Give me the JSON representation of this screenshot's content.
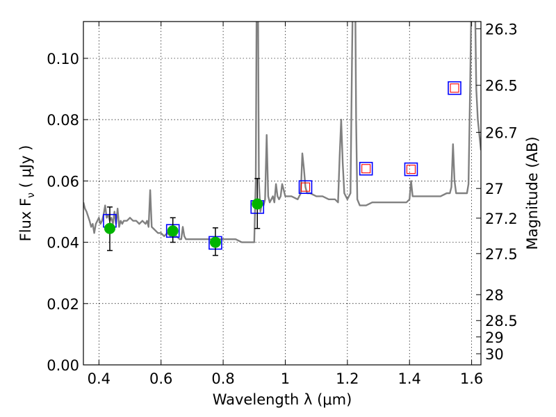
{
  "chart_data": {
    "type": "scatter",
    "xlabel": "Wavelength  λ (μm)",
    "ylabel": "Flux  F",
    "ylabel_sub": "ν",
    "ylabel_unit": " ( μJy )",
    "y2label": "Magnitude (AB)",
    "xlim": [
      0.35,
      1.63
    ],
    "ylim": [
      0.0,
      0.112
    ],
    "grid": true,
    "x_ticks": [
      0.4,
      0.6,
      0.8,
      1.0,
      1.2,
      1.4,
      1.6
    ],
    "x_tick_labels": [
      "0.4",
      "0.6",
      "0.8",
      "1",
      "1.2",
      "1.4",
      "1.6"
    ],
    "y_ticks": [
      0.0,
      0.02,
      0.04,
      0.06,
      0.08,
      0.1
    ],
    "y_tick_labels": [
      "0.00",
      "0.02",
      "0.04",
      "0.06",
      "0.08",
      "0.10"
    ],
    "y2_ticks": [
      {
        "mag": 26.3,
        "label": "26.3"
      },
      {
        "mag": 26.5,
        "label": "26.5"
      },
      {
        "mag": 26.7,
        "label": "26.7"
      },
      {
        "mag": 27.0,
        "label": "27"
      },
      {
        "mag": 27.2,
        "label": "27.2"
      },
      {
        "mag": 27.5,
        "label": "27.5"
      },
      {
        "mag": 28.0,
        "label": "28"
      },
      {
        "mag": 28.5,
        "label": "28.5"
      },
      {
        "mag": 29.0,
        "label": "29"
      },
      {
        "mag": 30.0,
        "label": "30"
      }
    ],
    "series": [
      {
        "kind": "line",
        "color": "#808080",
        "x": [
          0.35,
          0.355,
          0.36,
          0.37,
          0.375,
          0.38,
          0.385,
          0.39,
          0.4,
          0.405,
          0.41,
          0.415,
          0.42,
          0.425,
          0.43,
          0.435,
          0.44,
          0.445,
          0.45,
          0.455,
          0.46,
          0.465,
          0.47,
          0.475,
          0.48,
          0.49,
          0.5,
          0.51,
          0.52,
          0.53,
          0.54,
          0.55,
          0.555,
          0.56,
          0.565,
          0.57,
          0.58,
          0.59,
          0.6,
          0.61,
          0.62,
          0.63,
          0.64,
          0.65,
          0.66,
          0.665,
          0.67,
          0.675,
          0.68,
          0.7,
          0.72,
          0.74,
          0.76,
          0.78,
          0.8,
          0.82,
          0.84,
          0.86,
          0.88,
          0.89,
          0.895,
          0.9,
          0.905,
          0.908,
          0.91,
          0.912,
          0.915,
          0.92,
          0.925,
          0.93,
          0.935,
          0.94,
          0.945,
          0.95,
          0.955,
          0.96,
          0.965,
          0.97,
          0.975,
          0.98,
          0.985,
          0.99,
          1.0,
          1.02,
          1.04,
          1.05,
          1.055,
          1.06,
          1.065,
          1.07,
          1.08,
          1.1,
          1.12,
          1.14,
          1.16,
          1.17,
          1.175,
          1.18,
          1.185,
          1.19,
          1.2,
          1.21,
          1.215,
          1.218,
          1.222,
          1.225,
          1.228,
          1.232,
          1.24,
          1.26,
          1.28,
          1.3,
          1.32,
          1.34,
          1.36,
          1.38,
          1.39,
          1.4,
          1.405,
          1.41,
          1.42,
          1.44,
          1.46,
          1.48,
          1.5,
          1.52,
          1.53,
          1.535,
          1.54,
          1.545,
          1.55,
          1.56,
          1.58,
          1.585,
          1.59,
          1.595,
          1.6,
          1.605,
          1.61,
          1.615,
          1.62,
          1.63
        ],
        "y": [
          0.053,
          0.051,
          0.05,
          0.047,
          0.045,
          0.046,
          0.043,
          0.046,
          0.048,
          0.046,
          0.047,
          0.049,
          0.052,
          0.048,
          0.049,
          0.047,
          0.048,
          0.046,
          0.05,
          0.046,
          0.051,
          0.045,
          0.047,
          0.046,
          0.047,
          0.047,
          0.048,
          0.047,
          0.047,
          0.046,
          0.047,
          0.046,
          0.047,
          0.045,
          0.057,
          0.045,
          0.044,
          0.043,
          0.043,
          0.042,
          0.043,
          0.042,
          0.042,
          0.042,
          0.041,
          0.041,
          0.045,
          0.042,
          0.041,
          0.041,
          0.041,
          0.041,
          0.041,
          0.041,
          0.041,
          0.041,
          0.041,
          0.04,
          0.04,
          0.04,
          0.04,
          0.04,
          0.06,
          0.125,
          0.13,
          0.125,
          0.06,
          0.05,
          0.053,
          0.052,
          0.054,
          0.075,
          0.055,
          0.053,
          0.054,
          0.055,
          0.053,
          0.059,
          0.055,
          0.054,
          0.055,
          0.059,
          0.055,
          0.055,
          0.054,
          0.056,
          0.069,
          0.064,
          0.058,
          0.056,
          0.056,
          0.055,
          0.055,
          0.054,
          0.054,
          0.053,
          0.068,
          0.08,
          0.066,
          0.056,
          0.054,
          0.056,
          0.1,
          0.125,
          0.13,
          0.125,
          0.08,
          0.054,
          0.052,
          0.052,
          0.053,
          0.053,
          0.053,
          0.053,
          0.053,
          0.053,
          0.053,
          0.054,
          0.06,
          0.055,
          0.055,
          0.055,
          0.055,
          0.055,
          0.055,
          0.056,
          0.056,
          0.058,
          0.072,
          0.06,
          0.056,
          0.056,
          0.056,
          0.056,
          0.059,
          0.09,
          0.125,
          0.13,
          0.125,
          0.09,
          0.08,
          0.07
        ]
      },
      {
        "kind": "points",
        "marker": "square-open",
        "color": "#0000ff",
        "x": [
          0.435,
          0.638,
          0.775,
          0.91,
          1.065,
          1.26,
          1.405,
          1.545
        ],
        "y": [
          0.047,
          0.0437,
          0.0398,
          0.0515,
          0.058,
          0.064,
          0.0638,
          0.0903
        ]
      },
      {
        "kind": "points",
        "marker": "square-open-small",
        "color": "#ff0000",
        "x": [
          1.065,
          1.26,
          1.405,
          1.545
        ],
        "y": [
          0.058,
          0.064,
          0.0638,
          0.0903
        ]
      },
      {
        "kind": "points-errorbar",
        "marker": "circle",
        "color": "#00b400",
        "x": [
          0.435,
          0.638,
          0.775,
          0.91
        ],
        "y": [
          0.0445,
          0.0437,
          0.04,
          0.0525
        ],
        "yerr_low": [
          0.0373,
          0.04,
          0.0357,
          0.0445
        ],
        "yerr_high": [
          0.0515,
          0.048,
          0.0447,
          0.0608
        ]
      }
    ]
  }
}
